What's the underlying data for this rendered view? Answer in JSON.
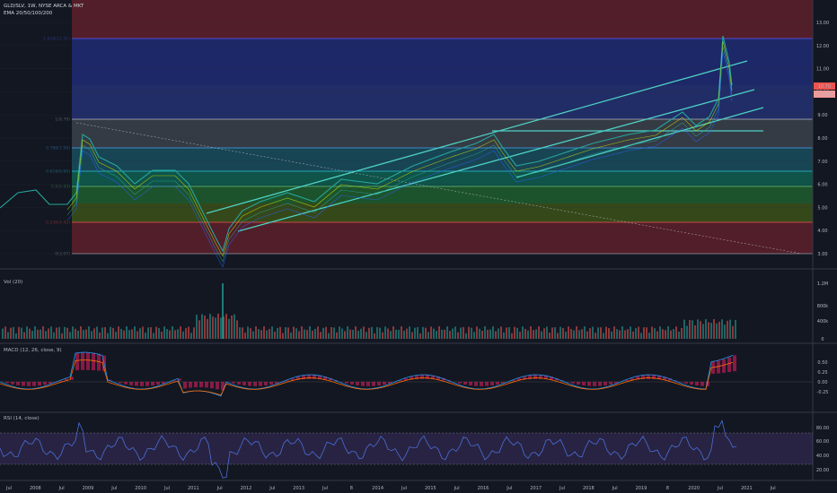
{
  "header": {
    "symbol_line": "GLD/SLV, 1W, NYSE ARCA & MKT",
    "indicator_line": "EMA 20/50/100/200"
  },
  "price_axis": {
    "ticks": [
      "13.00",
      "12.00",
      "11.00",
      "10.00",
      "9.00",
      "8.00",
      "7.00",
      "6.00",
      "5.00",
      "4.00",
      "3.00"
    ],
    "badge_values": [
      "10.70",
      "10.65"
    ],
    "badge_colors": [
      "#ef5350",
      "#ef9a9a"
    ]
  },
  "fib_levels": [
    {
      "label": "1.618(12.31)",
      "color": "#5b5bff"
    },
    {
      "label": "1(8.79)",
      "color": "#b2b5be"
    },
    {
      "label": "0.786(7.56)",
      "color": "#42a5f5"
    },
    {
      "label": "0.618(6.60)",
      "color": "#26c6da"
    },
    {
      "label": "0.5(5.93)",
      "color": "#66bb6a"
    },
    {
      "label": "0.236(4.42)",
      "color": "#ef5350"
    },
    {
      "label": "0(3.07)",
      "color": "#b2b5be"
    }
  ],
  "volume_panel": {
    "title": "Vol (20)",
    "ticks": [
      "1.2M",
      "800k",
      "400k",
      "0"
    ]
  },
  "macd_panel": {
    "title": "MACD (12, 26, close, 9)",
    "ticks": [
      "0.50",
      "0.25",
      "0.00",
      "-0.25"
    ]
  },
  "rsi_panel": {
    "title": "RSI (14, close)",
    "ticks": [
      "80.00",
      "60.00",
      "40.00",
      "20.00"
    ]
  },
  "time_axis": {
    "labels": [
      "Jul",
      "2008",
      "Jul",
      "2009",
      "Jul",
      "2010",
      "Jul",
      "2011",
      "Jul",
      "2012",
      "Jul",
      "2013",
      "Jul",
      "8",
      "2014",
      "Jul",
      "2015",
      "Jul",
      "2016",
      "Jul",
      "2017",
      "Jul",
      "2018",
      "Jul",
      "2019",
      "8",
      "2020",
      "Jul",
      "2021",
      "Jul"
    ]
  },
  "colors": {
    "background": "#131722",
    "candle_up": "#26a69a",
    "candle_down": "#ef5350",
    "channel": "#4dd0c4",
    "ema20": "#ffffff",
    "ema50": "#c6e600",
    "ema100": "#26a69a",
    "ema200": "#2962ff",
    "macd_line": "#2196f3",
    "signal_line": "#ff6d00",
    "macd_hist": "#e91e63",
    "rsi_line": "#4a6fd8",
    "rsi_band": "#7e57c2"
  }
}
